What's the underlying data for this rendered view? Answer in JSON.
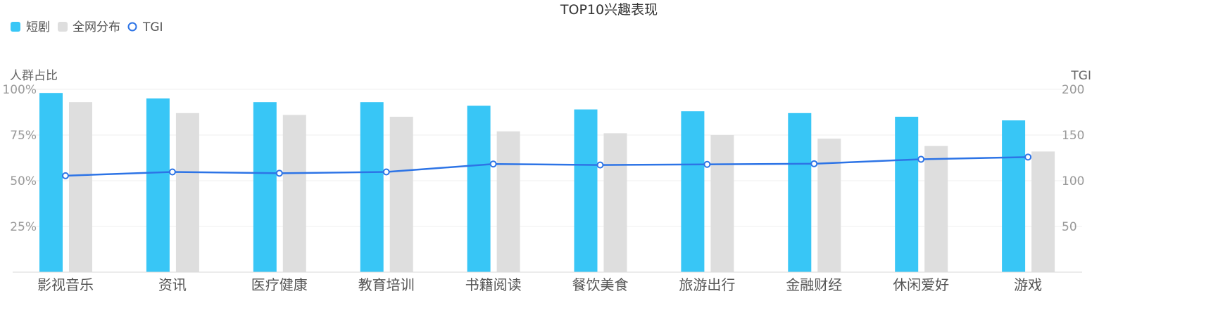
{
  "chart_data": {
    "type": "bar",
    "title": "TOP10兴趣表现",
    "categories": [
      "影视音乐",
      "资讯",
      "医疗健康",
      "教育培训",
      "书籍阅读",
      "餐饮美食",
      "旅游出行",
      "金融财经",
      "休闲爱好",
      "游戏"
    ],
    "series": [
      {
        "name": "短剧",
        "kind": "bar",
        "axis": "left",
        "color": "#38c6f6",
        "values": [
          98,
          95,
          93,
          93,
          91,
          89,
          88,
          87,
          85,
          83
        ]
      },
      {
        "name": "全网分布",
        "kind": "bar",
        "axis": "left",
        "color": "#dedede",
        "values": [
          93,
          87,
          86,
          85,
          77,
          76,
          75,
          73,
          69,
          66
        ]
      },
      {
        "name": "TGI",
        "kind": "line",
        "axis": "right",
        "color": "#2d74e6",
        "values": [
          105.5,
          109.6,
          108.2,
          109.6,
          118.3,
          117.2,
          117.9,
          118.6,
          123.5,
          125.9
        ]
      }
    ],
    "y_left": {
      "label": "人群占比",
      "min": 0,
      "max": 100,
      "ticks": [
        {
          "value": 25,
          "label": "25%"
        },
        {
          "value": 50,
          "label": "50%"
        },
        {
          "value": 75,
          "label": "75%"
        },
        {
          "value": 100,
          "label": "100%"
        }
      ]
    },
    "y_right": {
      "label": "TGI",
      "min": 0,
      "max": 200,
      "ticks": [
        {
          "value": 50,
          "label": "50"
        },
        {
          "value": 100,
          "label": "100"
        },
        {
          "value": 150,
          "label": "150"
        },
        {
          "value": 200,
          "label": "200"
        }
      ]
    },
    "legend_position": "top-left",
    "grid": true
  }
}
